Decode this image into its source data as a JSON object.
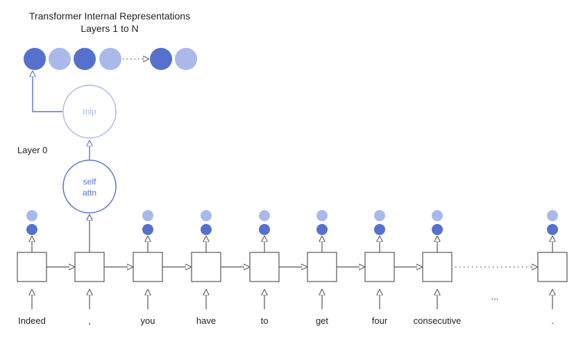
{
  "title": {
    "line1": "Transformer Internal Representations",
    "line2": "Layers 1 to N"
  },
  "layer0_label": "Layer 0",
  "mlp_label": "mlp",
  "self_attn_label": {
    "line1": "self",
    "line2": "attn"
  },
  "tokens": [
    "Indeed",
    ",",
    "you",
    "have",
    "to",
    "get",
    "four",
    "consecutive",
    "."
  ],
  "ellipsis_label": "...",
  "colors": {
    "dark_blue": "#5671cd",
    "light_blue": "#aab9ea",
    "mlp_outline": "#aab9ea",
    "attn_outline": "#5671cd",
    "box_stroke": "#555555",
    "dots": "#555555"
  },
  "representation_row": [
    "dark",
    "light",
    "dark",
    "light",
    "ellipsis",
    "dark",
    "light"
  ]
}
